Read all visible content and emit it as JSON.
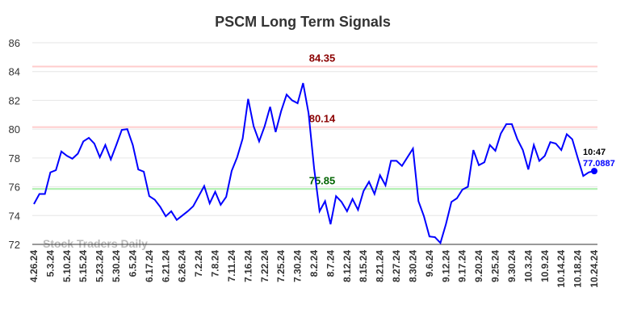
{
  "chart_data": {
    "type": "line",
    "title": "PSCM Long Term Signals",
    "categories": [
      "4.26.24",
      null,
      null,
      "5.3.24",
      null,
      null,
      "5.10.24",
      null,
      null,
      "5.15.24",
      null,
      null,
      "5.23.24",
      null,
      null,
      "5.30.24",
      null,
      null,
      "6.5.24",
      null,
      null,
      "6.17.24",
      null,
      null,
      "6.21.24",
      null,
      null,
      "6.26.24",
      null,
      null,
      "7.2.24",
      null,
      null,
      "7.8.24",
      null,
      null,
      "7.11.24",
      null,
      null,
      "7.16.24",
      null,
      null,
      "7.22.24",
      null,
      null,
      "7.25.24",
      null,
      null,
      "7.30.24",
      null,
      null,
      "8.2.24",
      null,
      null,
      "8.7.24",
      null,
      null,
      "8.12.24",
      null,
      null,
      "8.15.24",
      null,
      null,
      "8.21.24",
      null,
      null,
      "8.27.24",
      null,
      null,
      "8.30.24",
      null,
      null,
      "9.6.24",
      null,
      null,
      "9.12.24",
      null,
      null,
      "9.17.24",
      null,
      null,
      "9.20.24",
      null,
      null,
      "9.25.24",
      null,
      null,
      "9.30.24",
      null,
      null,
      "10.3.24",
      null,
      null,
      "10.9.24",
      null,
      null,
      "10.14.24",
      null,
      null,
      "10.18.24",
      null,
      null,
      "10.24.24"
    ],
    "values": [
      74.8,
      75.5,
      75.5,
      77.0,
      77.15,
      78.45,
      78.15,
      77.95,
      78.3,
      79.15,
      79.4,
      79.0,
      78.05,
      78.9,
      77.9,
      78.9,
      79.95,
      80.0,
      78.9,
      77.2,
      77.05,
      75.35,
      75.1,
      74.6,
      73.95,
      74.3,
      73.7,
      74.0,
      74.3,
      74.65,
      75.35,
      76.05,
      74.85,
      75.65,
      74.75,
      75.3,
      77.1,
      78.05,
      79.35,
      82.1,
      80.2,
      79.15,
      80.2,
      81.55,
      79.8,
      81.25,
      82.4,
      82.0,
      81.8,
      83.2,
      81.1,
      77.3,
      74.3,
      75.0,
      73.4,
      75.35,
      74.95,
      74.3,
      75.15,
      74.4,
      75.7,
      76.35,
      75.5,
      76.8,
      76.1,
      77.8,
      77.8,
      77.45,
      78.05,
      78.65,
      75.0,
      73.95,
      72.55,
      72.5,
      72.1,
      73.4,
      74.95,
      75.2,
      75.8,
      76.0,
      78.55,
      77.5,
      77.7,
      78.9,
      78.5,
      79.7,
      80.35,
      80.35,
      79.3,
      78.55,
      77.2,
      78.9,
      77.8,
      78.15,
      79.1,
      79.0,
      78.55,
      79.65,
      79.3,
      78.0,
      76.75,
      77.0,
      77.0887
    ],
    "color": "#0000ff",
    "ylim": [
      72,
      86
    ],
    "yticks": [
      72,
      74,
      76,
      78,
      80,
      82,
      84,
      86
    ],
    "grid": true,
    "hlines": [
      {
        "value": 84.35,
        "color": "#ffcccc",
        "label_color": "#8b0000"
      },
      {
        "value": 80.14,
        "color": "#ffcccc",
        "label_color": "#8b0000"
      },
      {
        "value": 75.85,
        "color": "#aaeeaa",
        "label_color": "#006400"
      }
    ],
    "last_label": "10:47",
    "watermark": "Stock Traders Daily"
  }
}
